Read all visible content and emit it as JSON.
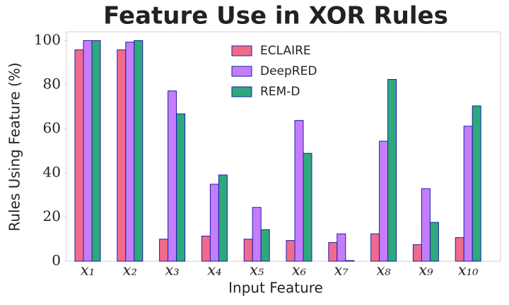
{
  "chart_data": {
    "type": "bar",
    "title": "Feature Use in XOR Rules",
    "x_label": "Input Feature",
    "y_label": "Rules Using Feature (%)",
    "categories": [
      "x₁",
      "x₂",
      "x₃",
      "x₄",
      "x₅",
      "x₆",
      "x₇",
      "x₈",
      "x₉",
      "x₁₀"
    ],
    "series": [
      {
        "name": "ECLAIRE",
        "color": "#f06b8b",
        "values": [
          95.8,
          95.8,
          10,
          11.4,
          10,
          9.4,
          8.5,
          12.4,
          7.5,
          10.7
        ]
      },
      {
        "name": "DeepRED",
        "color": "#c57dfb",
        "values": [
          100,
          99.3,
          77.2,
          34.9,
          24.4,
          63.8,
          12.4,
          54.4,
          32.9,
          61.2
        ]
      },
      {
        "name": "REM-D",
        "color": "#2ea87c",
        "values": [
          100,
          100,
          66.8,
          39.1,
          14.3,
          48.9,
          0.3,
          82.4,
          17.6,
          70.4
        ]
      }
    ],
    "ylim": [
      0,
      104
    ],
    "yticks": [
      0,
      20,
      40,
      60,
      80,
      100
    ],
    "legend": "upper center",
    "grid": false
  }
}
